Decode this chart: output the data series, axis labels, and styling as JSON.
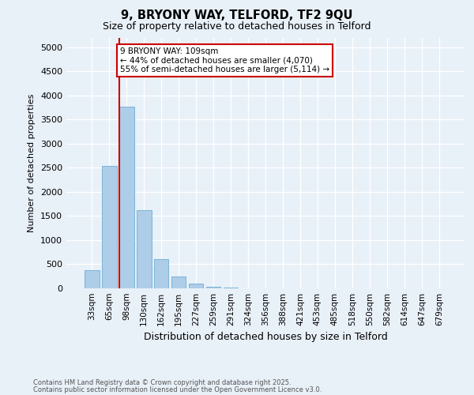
{
  "title1": "9, BRYONY WAY, TELFORD, TF2 9QU",
  "title2": "Size of property relative to detached houses in Telford",
  "xlabel": "Distribution of detached houses by size in Telford",
  "ylabel": "Number of detached properties",
  "categories": [
    "33sqm",
    "65sqm",
    "98sqm",
    "130sqm",
    "162sqm",
    "195sqm",
    "227sqm",
    "259sqm",
    "291sqm",
    "324sqm",
    "356sqm",
    "388sqm",
    "421sqm",
    "453sqm",
    "485sqm",
    "518sqm",
    "550sqm",
    "582sqm",
    "614sqm",
    "647sqm",
    "679sqm"
  ],
  "values": [
    370,
    2540,
    3760,
    1620,
    600,
    240,
    105,
    40,
    20,
    0,
    0,
    0,
    0,
    0,
    0,
    0,
    0,
    0,
    0,
    0,
    0
  ],
  "bar_color": "#aecde8",
  "bar_edge_color": "#7ab4d8",
  "vline_color": "#cc0000",
  "ylim": [
    0,
    5200
  ],
  "yticks": [
    0,
    500,
    1000,
    1500,
    2000,
    2500,
    3000,
    3500,
    4000,
    4500,
    5000
  ],
  "annotation_text": "9 BRYONY WAY: 109sqm\n← 44% of detached houses are smaller (4,070)\n55% of semi-detached houses are larger (5,114) →",
  "annotation_box_color": "#cc0000",
  "footer1": "Contains HM Land Registry data © Crown copyright and database right 2025.",
  "footer2": "Contains public sector information licensed under the Open Government Licence v3.0.",
  "bg_color": "#e8f0f8",
  "grid_color": "#ffffff"
}
